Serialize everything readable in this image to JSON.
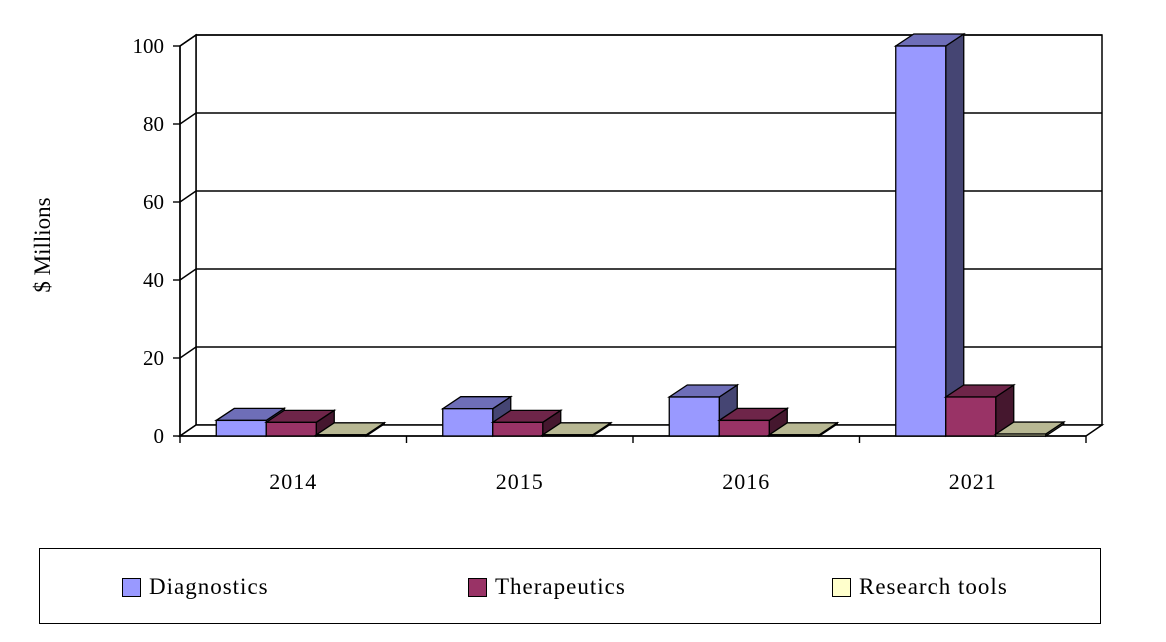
{
  "chart_data": {
    "type": "bar",
    "title": "",
    "xlabel": "",
    "ylabel": "$ Millions",
    "ylim": [
      0,
      100
    ],
    "yticks": [
      0,
      20,
      40,
      60,
      80,
      100
    ],
    "categories": [
      "2014",
      "2015",
      "2016",
      "2021"
    ],
    "series": [
      {
        "name": "Diagnostics",
        "values": [
          4,
          7,
          10,
          100
        ],
        "color": "#9999ff"
      },
      {
        "name": "Therapeutics",
        "values": [
          3.5,
          3.5,
          4,
          10
        ],
        "color": "#993366"
      },
      {
        "name": "Research tools",
        "values": [
          0.3,
          0.3,
          0.3,
          0.5
        ],
        "color": "#ffffcc"
      }
    ],
    "grid": true,
    "legend_position": "bottom",
    "style": "3d-clustered-column"
  }
}
